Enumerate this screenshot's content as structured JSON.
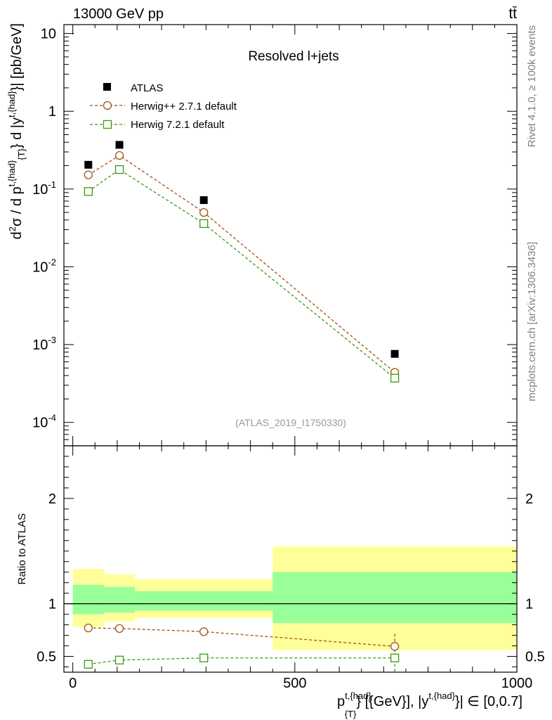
{
  "chart_data": {
    "type": "scatter",
    "header_left": "13000 GeV pp",
    "header_right": "tt̄",
    "title": "Resolved l+jets",
    "watermark": "(ATLAS_2019_I1750330)",
    "side_right_1": "Rivet 4.1.0, ≥ 100k events",
    "side_right_2": "mcplots.cern.ch [arXiv:1306.3436]",
    "ylabel_main": "d²σ / d p^{t,{had}}_{T} d |y^{t,{had}}| [pb/GeV]",
    "ylabel_main_parts": {
      "d": "d",
      "two": "2",
      "sigma": "σ / d p",
      "sup1": "t,{had}",
      "sub1": "{T}",
      "mid": "} d |y",
      "sup2": "t,{had}",
      "end": "}| [pb/GeV]"
    },
    "ylabel_ratio": "Ratio to ATLAS",
    "xlabel": "p^{t,{had}}_{T} [{GeV}], |y^{t,{had}}| ∈ [0,0.7]",
    "xlabel_parts": {
      "p": "p",
      "sup1": "t,{had}",
      "sub1": "{T}",
      "mid": "} [{GeV}], |y",
      "sup2": "t,{had}",
      "end": "}| ∈ [0,0.7]"
    },
    "xlim": [
      -20,
      1000
    ],
    "ylim_main": [
      5e-05,
      13
    ],
    "ylim_ratio": [
      0.35,
      2.5
    ],
    "x_ticks": [
      {
        "v": 0,
        "label": "0"
      },
      {
        "v": 500,
        "label": "500"
      },
      {
        "v": 1000,
        "label": "1000"
      }
    ],
    "y_ticks_main": [
      {
        "v": 10,
        "base": "10",
        "exp": ""
      },
      {
        "v": 1,
        "base": "1",
        "exp": ""
      },
      {
        "v": 0.1,
        "base": "10",
        "exp": "-1"
      },
      {
        "v": 0.01,
        "base": "10",
        "exp": "-2"
      },
      {
        "v": 0.001,
        "base": "10",
        "exp": "-3"
      },
      {
        "v": 0.0001,
        "base": "10",
        "exp": "-4"
      }
    ],
    "y_ticks_ratio": [
      {
        "v": 0.5,
        "label": "0.5"
      },
      {
        "v": 1,
        "label": "1"
      },
      {
        "v": 2,
        "label": "2"
      }
    ],
    "bins": [
      {
        "lo": 0,
        "hi": 70,
        "x": 35
      },
      {
        "lo": 70,
        "hi": 140,
        "x": 105
      },
      {
        "lo": 140,
        "hi": 450,
        "x": 295
      },
      {
        "lo": 450,
        "hi": 1000,
        "x": 725
      }
    ],
    "series": [
      {
        "name": "ATLAS",
        "marker": "filled-square",
        "color": "#000000",
        "values": [
          0.205,
          0.37,
          0.072,
          0.00076
        ]
      },
      {
        "name": "Herwig++ 2.7.1 default",
        "marker": "open-circle",
        "color": "#a0520e",
        "values": [
          0.152,
          0.27,
          0.05,
          0.00044
        ],
        "ratio": [
          0.77,
          0.765,
          0.735,
          0.595
        ],
        "ratio_err": [
          0,
          0,
          0,
          0.12
        ]
      },
      {
        "name": "Herwig 7.2.1 default",
        "marker": "open-square",
        "color": "#3a9a12",
        "values": [
          0.093,
          0.178,
          0.036,
          0.00037
        ],
        "ratio": [
          0.425,
          0.465,
          0.485,
          0.485
        ],
        "ratio_err": [
          0,
          0,
          0,
          0.13
        ]
      }
    ],
    "uncertainty_bands": {
      "inner_color": "#99ff99",
      "outer_color": "#ffff99",
      "inner": [
        [
          0.9,
          1.18
        ],
        [
          0.915,
          1.16
        ],
        [
          0.935,
          1.12
        ],
        [
          0.815,
          1.3
        ]
      ],
      "outer": [
        [
          0.78,
          1.33
        ],
        [
          0.83,
          1.28
        ],
        [
          0.865,
          1.235
        ],
        [
          0.56,
          1.545
        ]
      ]
    }
  }
}
